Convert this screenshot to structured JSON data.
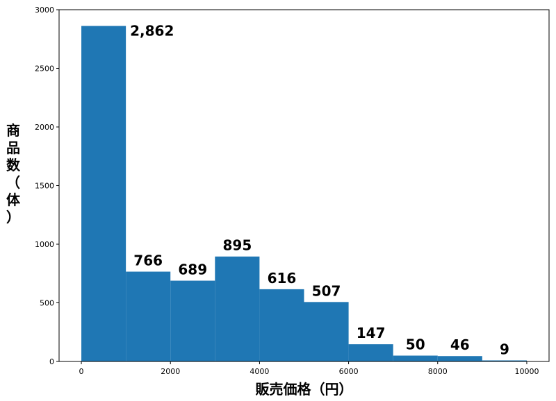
{
  "chart_data": {
    "type": "bar",
    "subtype": "histogram",
    "bins": [
      {
        "x0": 0,
        "x1": 1000,
        "value": 2862,
        "label": "2,862"
      },
      {
        "x0": 1000,
        "x1": 2000,
        "value": 766,
        "label": "766"
      },
      {
        "x0": 2000,
        "x1": 3000,
        "value": 689,
        "label": "689"
      },
      {
        "x0": 3000,
        "x1": 4000,
        "value": 895,
        "label": "895"
      },
      {
        "x0": 4000,
        "x1": 5000,
        "value": 616,
        "label": "616"
      },
      {
        "x0": 5000,
        "x1": 6000,
        "value": 507,
        "label": "507"
      },
      {
        "x0": 6000,
        "x1": 7000,
        "value": 147,
        "label": "147"
      },
      {
        "x0": 7000,
        "x1": 8000,
        "value": 50,
        "label": "50"
      },
      {
        "x0": 8000,
        "x1": 9000,
        "value": 46,
        "label": "46"
      },
      {
        "x0": 9000,
        "x1": 10000,
        "value": 9,
        "label": "9"
      }
    ],
    "xlabel": "販売価格（円）",
    "ylabel": "商品数（体）",
    "xlim": [
      -500,
      10500
    ],
    "ylim": [
      0,
      3000
    ],
    "xticks": [
      0,
      2000,
      4000,
      6000,
      8000,
      10000
    ],
    "yticks": [
      0,
      500,
      1000,
      1500,
      2000,
      2500,
      3000
    ],
    "grid": false,
    "bar_color": "#1f77b4"
  }
}
